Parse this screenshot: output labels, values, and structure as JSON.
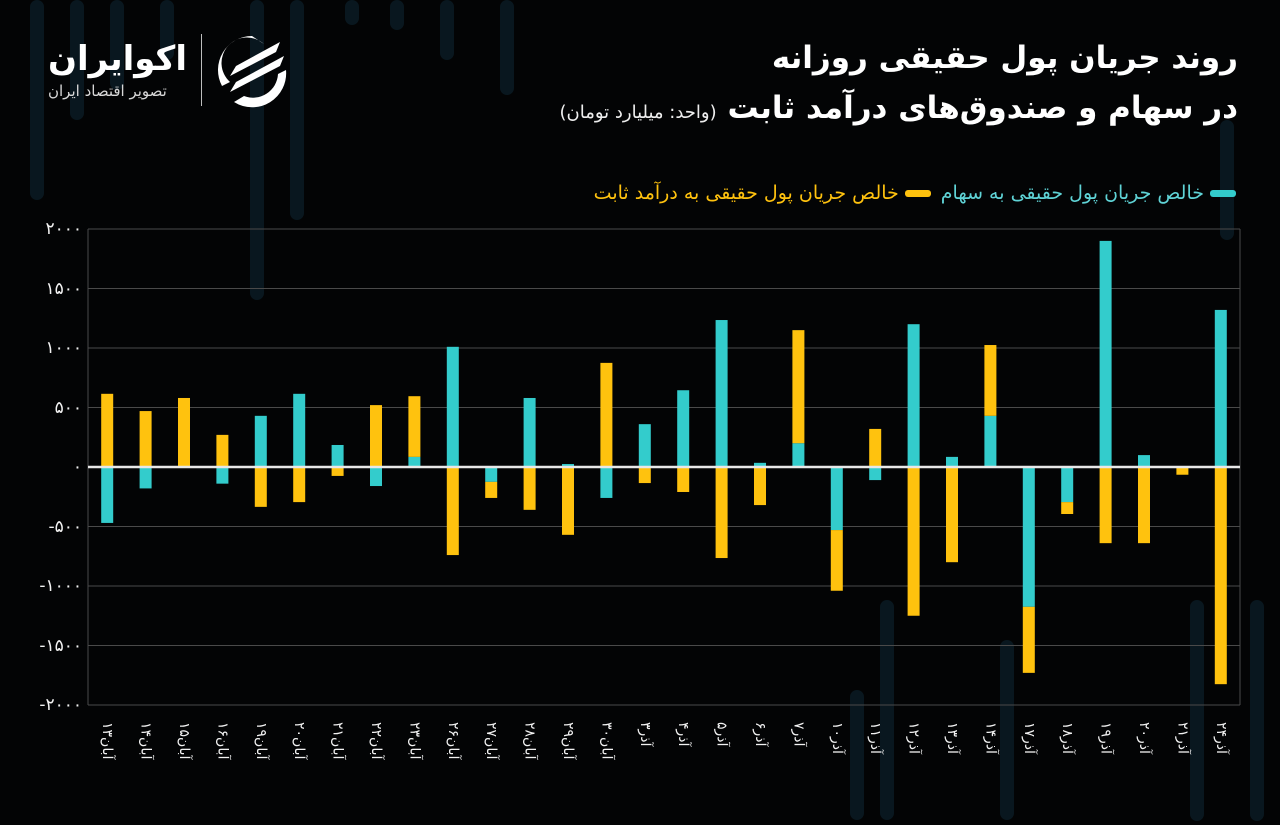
{
  "brand": {
    "name": "اکوایران",
    "tagline": "تصویر اقتصاد ایران"
  },
  "header": {
    "title_line1": "روند جریان پول حقیقی روزانه",
    "title_line2": "در سهام و صندوق‌های درآمد ثابت",
    "unit": "(واحد: میلیارد تومان)"
  },
  "legend": {
    "stocks": "خالص جریان پول حقیقی به سهام",
    "fixed_income": "خالص جریان پول حقیقی به درآمد ثابت"
  },
  "colors": {
    "background": "#030405",
    "stocks": "#33cccc",
    "fixed_income": "#ffc20e",
    "grid": "#4a4a4a",
    "zero_line": "#e8e8e8",
    "text": "#ffffff"
  },
  "chart_data": {
    "type": "bar",
    "stacked": true,
    "title": "روند جریان پول حقیقی روزانه در سهام و صندوق‌های درآمد ثابت",
    "subtitle": "(واحد: میلیارد تومان)",
    "xlabel": "",
    "ylabel": "میلیارد تومان",
    "ylim": [
      -2000,
      2000
    ],
    "yticks": [
      2000,
      1500,
      1000,
      500,
      0,
      -500,
      -1000,
      -1500,
      -2000
    ],
    "ytick_labels": [
      "۲۰۰۰",
      "۱۵۰۰",
      "۱۰۰۰",
      "۵۰۰",
      "۰",
      "-۵۰۰",
      "-۱۰۰۰",
      "-۱۵۰۰",
      "-۲۰۰۰"
    ],
    "grid": true,
    "legend_position": "top-right",
    "categories": [
      "آبان۱۳",
      "آبان۱۴",
      "آبان۱۵",
      "آبان۱۶",
      "آبان۱۹",
      "آبان۲۰",
      "آبان۲۱",
      "آبان۲۲",
      "آبان۲۳",
      "آبان۲۶",
      "آبان۲۷",
      "آبان۲۸",
      "آبان۲۹",
      "آبان۳۰",
      "آذر۳",
      "آذر۴",
      "آذر۵",
      "آذر۶",
      "آذر۷",
      "آذر۱۰",
      "آذر۱۱",
      "آذر۱۲",
      "آذر۱۳",
      "آذر۱۴",
      "آذر۱۷",
      "آذر۱۸",
      "آذر۱۹",
      "آذر۲۰",
      "آذر۲۱",
      "آذر۲۴"
    ],
    "series": [
      {
        "name": "خالص جریان پول حقیقی به سهام",
        "color": "#33cccc",
        "values": [
          -470,
          -180,
          0,
          -140,
          430,
          615,
          185,
          -160,
          85,
          1010,
          -125,
          580,
          25,
          -260,
          360,
          645,
          1235,
          35,
          200,
          -530,
          -110,
          1200,
          85,
          430,
          -1175,
          -295,
          1900,
          100,
          0,
          1320
        ]
      },
      {
        "name": "خالص جریان پول حقیقی به درآمد ثابت",
        "color": "#ffc20e",
        "values": [
          615,
          470,
          580,
          270,
          -335,
          -295,
          -75,
          520,
          510,
          -740,
          -135,
          -360,
          -570,
          875,
          -135,
          -210,
          -765,
          -320,
          950,
          -510,
          320,
          -1250,
          -800,
          595,
          -555,
          -100,
          -640,
          -640,
          -65,
          -1825
        ]
      }
    ]
  }
}
